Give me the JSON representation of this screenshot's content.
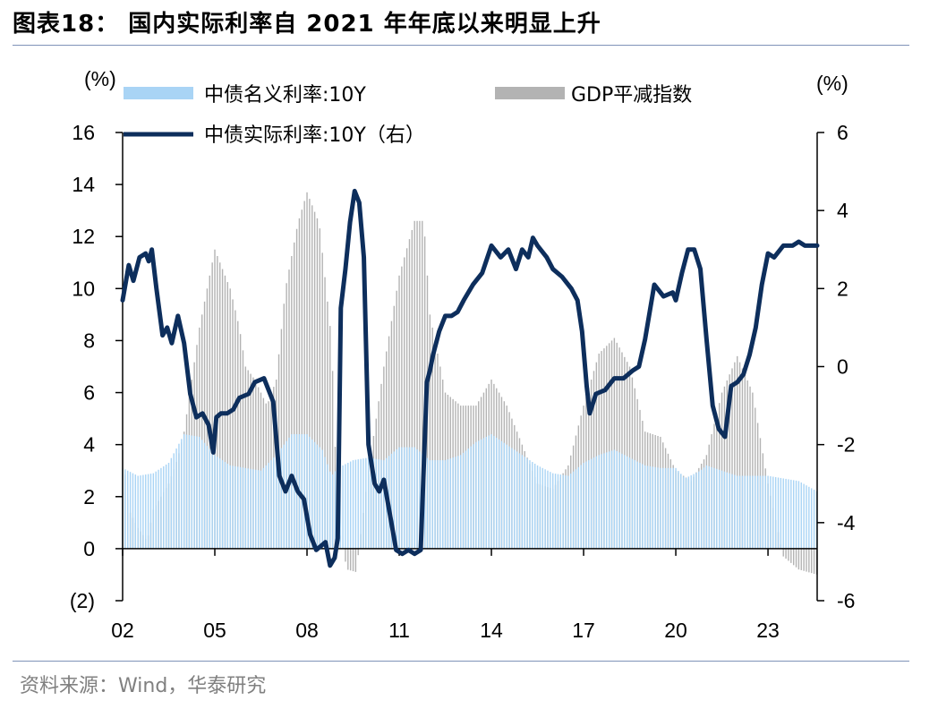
{
  "figure": {
    "title": "图表18：  国内实际利率自 2021 年年底以来明显上升",
    "source": "资料来源：Wind，华泰研究"
  },
  "chart_data": {
    "type": "bar+line",
    "x_tick_labels": [
      "02",
      "05",
      "08",
      "11",
      "14",
      "17",
      "20",
      "23"
    ],
    "x_range": [
      2002.0,
      2024.6
    ],
    "left_axis": {
      "unit_label": "(%)",
      "range": [
        -2,
        16
      ],
      "ticks": [
        -2,
        0,
        2,
        4,
        6,
        8,
        10,
        12,
        14,
        16
      ],
      "tick_labels": [
        "(2)",
        "0",
        "2",
        "4",
        "6",
        "8",
        "10",
        "12",
        "14",
        "16"
      ]
    },
    "right_axis": {
      "unit_label": "(%)",
      "range": [
        -6,
        6
      ],
      "ticks": [
        -6,
        -4,
        -2,
        0,
        2,
        4,
        6
      ],
      "tick_labels": [
        "-6",
        "-4",
        "-2",
        "0",
        "2",
        "4",
        "6"
      ]
    },
    "colors": {
      "nominal": "#a9d4f5",
      "deflator": "#b3b3b3",
      "real": "#0d2e5c",
      "axis": "#000000"
    },
    "series": [
      {
        "name": "中债名义利率:10Y",
        "kind": "bar",
        "axis": "left",
        "x": [
          2002.0,
          2002.5,
          2003.0,
          2003.5,
          2004.0,
          2004.5,
          2005.0,
          2005.5,
          2006.0,
          2006.5,
          2007.0,
          2007.5,
          2008.0,
          2008.5,
          2008.8,
          2009.0,
          2009.5,
          2010.0,
          2010.5,
          2011.0,
          2011.5,
          2012.0,
          2012.5,
          2013.0,
          2013.5,
          2014.0,
          2014.5,
          2015.0,
          2015.5,
          2016.0,
          2016.5,
          2017.0,
          2017.5,
          2018.0,
          2018.5,
          2019.0,
          2019.5,
          2020.0,
          2020.3,
          2020.8,
          2021.0,
          2021.5,
          2022.0,
          2022.5,
          2023.0,
          2023.5,
          2024.0,
          2024.6
        ],
        "values": [
          3.1,
          2.8,
          2.9,
          3.3,
          4.4,
          4.3,
          3.6,
          3.2,
          3.1,
          3.0,
          3.6,
          4.4,
          4.4,
          3.8,
          2.8,
          3.1,
          3.4,
          3.5,
          3.4,
          3.9,
          3.9,
          3.4,
          3.4,
          3.6,
          4.1,
          4.4,
          4.0,
          3.6,
          3.2,
          2.9,
          2.8,
          3.3,
          3.6,
          3.8,
          3.5,
          3.2,
          3.1,
          3.1,
          2.7,
          3.0,
          3.2,
          3.0,
          2.8,
          2.8,
          2.8,
          2.7,
          2.6,
          2.2
        ]
      },
      {
        "name": "GDP平减指数",
        "kind": "bar",
        "axis": "left",
        "x": [
          2002.0,
          2002.2,
          2002.5,
          2002.8,
          2003.0,
          2003.5,
          2003.8,
          2004.0,
          2004.5,
          2005.0,
          2005.5,
          2005.8,
          2006.0,
          2006.3,
          2006.7,
          2007.0,
          2007.3,
          2007.7,
          2008.0,
          2008.4,
          2008.8,
          2009.0,
          2009.3,
          2009.6,
          2010.0,
          2010.5,
          2011.0,
          2011.5,
          2011.8,
          2012.0,
          2012.5,
          2013.0,
          2013.5,
          2014.0,
          2014.5,
          2015.0,
          2015.5,
          2016.0,
          2016.5,
          2017.0,
          2017.5,
          2018.0,
          2018.5,
          2019.0,
          2019.5,
          2020.0,
          2020.5,
          2021.0,
          2021.5,
          2022.0,
          2022.5,
          2023.0,
          2023.5,
          2024.0,
          2024.6
        ],
        "values": [
          3.8,
          1.5,
          0.8,
          0.3,
          1.5,
          2.5,
          3.5,
          4.5,
          8.5,
          11.5,
          10.0,
          8.5,
          7.0,
          6.5,
          5.5,
          6.5,
          10.0,
          12.5,
          13.7,
          12.5,
          8.0,
          1.0,
          -0.8,
          -0.9,
          3.0,
          7.0,
          10.5,
          12.6,
          12.6,
          9.0,
          6.0,
          5.5,
          5.5,
          6.5,
          5.5,
          4.0,
          2.5,
          2.3,
          3.2,
          5.5,
          7.5,
          8.1,
          7.0,
          4.5,
          4.3,
          3.0,
          2.6,
          3.6,
          6.0,
          7.4,
          6.0,
          2.5,
          -0.3,
          -0.8,
          -1.0
        ]
      },
      {
        "name": "中债实际利率:10Y（右）",
        "kind": "line",
        "axis": "right",
        "x": [
          2002.0,
          2002.2,
          2002.35,
          2002.55,
          2002.75,
          2002.85,
          2002.95,
          2003.1,
          2003.3,
          2003.45,
          2003.6,
          2003.8,
          2004.0,
          2004.2,
          2004.4,
          2004.6,
          2004.8,
          2004.95,
          2005.05,
          2005.2,
          2005.4,
          2005.6,
          2005.8,
          2006.1,
          2006.3,
          2006.6,
          2006.9,
          2007.1,
          2007.3,
          2007.5,
          2007.7,
          2007.9,
          2008.1,
          2008.3,
          2008.45,
          2008.6,
          2008.75,
          2008.9,
          2009.0,
          2009.1,
          2009.25,
          2009.4,
          2009.55,
          2009.7,
          2009.85,
          2010.0,
          2010.2,
          2010.35,
          2010.5,
          2010.7,
          2010.9,
          2011.1,
          2011.3,
          2011.5,
          2011.7,
          2011.9,
          2012.0,
          2012.1,
          2012.3,
          2012.5,
          2012.7,
          2012.9,
          2013.1,
          2013.4,
          2013.7,
          2014.0,
          2014.3,
          2014.55,
          2014.8,
          2015.0,
          2015.2,
          2015.35,
          2015.5,
          2015.8,
          2016.0,
          2016.3,
          2016.6,
          2016.8,
          2016.95,
          2017.1,
          2017.2,
          2017.4,
          2017.7,
          2018.0,
          2018.3,
          2018.6,
          2018.8,
          2019.0,
          2019.3,
          2019.6,
          2019.9,
          2020.0,
          2020.2,
          2020.4,
          2020.6,
          2020.8,
          2021.0,
          2021.2,
          2021.4,
          2021.6,
          2021.8,
          2022.0,
          2022.2,
          2022.4,
          2022.6,
          2022.8,
          2023.0,
          2023.2,
          2023.5,
          2023.8,
          2024.0,
          2024.2,
          2024.4,
          2024.6
        ],
        "values": [
          1.7,
          2.6,
          2.2,
          2.8,
          2.9,
          2.7,
          3.0,
          2.0,
          0.8,
          1.0,
          0.6,
          1.3,
          0.6,
          -0.7,
          -1.3,
          -1.2,
          -1.5,
          -2.2,
          -1.3,
          -1.2,
          -1.2,
          -1.1,
          -0.8,
          -0.7,
          -0.4,
          -0.3,
          -0.9,
          -2.8,
          -3.2,
          -2.8,
          -3.2,
          -3.4,
          -4.3,
          -4.7,
          -4.6,
          -4.5,
          -5.1,
          -4.9,
          -4.4,
          1.5,
          2.5,
          3.7,
          4.5,
          4.2,
          2.8,
          -2.0,
          -3.0,
          -3.2,
          -2.9,
          -3.8,
          -4.7,
          -4.8,
          -4.7,
          -4.8,
          -4.7,
          -0.4,
          -0.1,
          0.3,
          0.9,
          1.3,
          1.3,
          1.4,
          1.7,
          2.1,
          2.4,
          3.1,
          2.8,
          3.0,
          2.5,
          3.0,
          2.8,
          3.3,
          3.1,
          2.8,
          2.5,
          2.3,
          2.0,
          1.7,
          0.9,
          -0.5,
          -1.2,
          -0.7,
          -0.6,
          -0.3,
          -0.3,
          -0.1,
          0.0,
          0.7,
          2.1,
          1.8,
          1.9,
          1.7,
          2.4,
          3.0,
          3.0,
          2.5,
          0.7,
          -1.0,
          -1.6,
          -1.8,
          -0.5,
          -0.4,
          -0.2,
          0.3,
          1.0,
          2.1,
          2.9,
          2.8,
          3.1,
          3.1,
          3.2,
          3.1,
          3.1,
          3.1
        ]
      }
    ]
  }
}
